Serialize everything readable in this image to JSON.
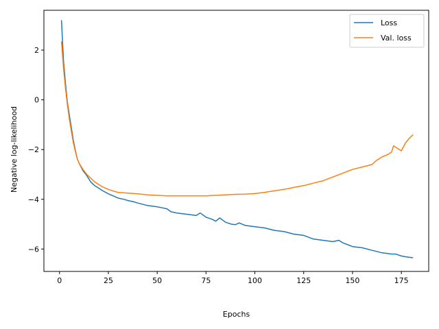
{
  "chart_data": {
    "type": "line",
    "xlabel": "Epochs",
    "ylabel": "Negative log-likelihood",
    "xlim": [
      -8,
      189
    ],
    "ylim": [
      -6.9,
      3.6
    ],
    "xticks": [
      0,
      25,
      50,
      75,
      100,
      125,
      150,
      175
    ],
    "yticks": [
      -6,
      -4,
      -2,
      0,
      2
    ],
    "grid": false,
    "legend_position": "top-right",
    "series": [
      {
        "name": "Loss",
        "color": "#1f77b4",
        "x": [
          1,
          2,
          3,
          4,
          5,
          6,
          7,
          8,
          9,
          10,
          12,
          14,
          16,
          18,
          20,
          22,
          25,
          28,
          30,
          33,
          35,
          38,
          40,
          45,
          50,
          55,
          57,
          60,
          65,
          70,
          72,
          75,
          78,
          80,
          82,
          85,
          88,
          90,
          92,
          95,
          100,
          105,
          110,
          115,
          120,
          125,
          130,
          135,
          140,
          143,
          145,
          150,
          155,
          160,
          165,
          170,
          172,
          175,
          178,
          181
        ],
        "y": [
          3.2,
          1.6,
          0.7,
          -0.1,
          -0.6,
          -1.1,
          -1.6,
          -2.0,
          -2.35,
          -2.55,
          -2.85,
          -3.05,
          -3.3,
          -3.45,
          -3.55,
          -3.65,
          -3.78,
          -3.88,
          -3.95,
          -4.0,
          -4.05,
          -4.1,
          -4.15,
          -4.25,
          -4.3,
          -4.38,
          -4.5,
          -4.55,
          -4.6,
          -4.65,
          -4.55,
          -4.72,
          -4.8,
          -4.88,
          -4.75,
          -4.92,
          -5.0,
          -5.02,
          -4.95,
          -5.05,
          -5.1,
          -5.15,
          -5.25,
          -5.3,
          -5.4,
          -5.45,
          -5.6,
          -5.65,
          -5.7,
          -5.65,
          -5.75,
          -5.9,
          -5.95,
          -6.05,
          -6.15,
          -6.2,
          -6.2,
          -6.28,
          -6.32,
          -6.35
        ]
      },
      {
        "name": "Val. loss",
        "color": "#ff7f0e",
        "x": [
          1,
          2,
          3,
          4,
          5,
          6,
          7,
          8,
          9,
          10,
          12,
          14,
          16,
          18,
          20,
          22,
          25,
          28,
          30,
          35,
          40,
          45,
          50,
          55,
          60,
          65,
          70,
          75,
          78,
          80,
          85,
          90,
          95,
          100,
          105,
          110,
          115,
          120,
          125,
          130,
          135,
          140,
          145,
          150,
          155,
          160,
          162,
          165,
          168,
          170,
          171,
          173,
          175,
          177,
          179,
          181
        ],
        "y": [
          2.35,
          1.3,
          0.5,
          -0.2,
          -0.75,
          -1.25,
          -1.7,
          -2.05,
          -2.35,
          -2.55,
          -2.8,
          -3.0,
          -3.15,
          -3.3,
          -3.4,
          -3.5,
          -3.6,
          -3.68,
          -3.72,
          -3.75,
          -3.78,
          -3.82,
          -3.84,
          -3.86,
          -3.86,
          -3.86,
          -3.86,
          -3.86,
          -3.85,
          -3.84,
          -3.82,
          -3.8,
          -3.79,
          -3.77,
          -3.72,
          -3.66,
          -3.6,
          -3.52,
          -3.45,
          -3.35,
          -3.25,
          -3.1,
          -2.95,
          -2.8,
          -2.7,
          -2.6,
          -2.45,
          -2.3,
          -2.2,
          -2.1,
          -1.85,
          -1.95,
          -2.05,
          -1.75,
          -1.55,
          -1.4
        ]
      }
    ]
  }
}
